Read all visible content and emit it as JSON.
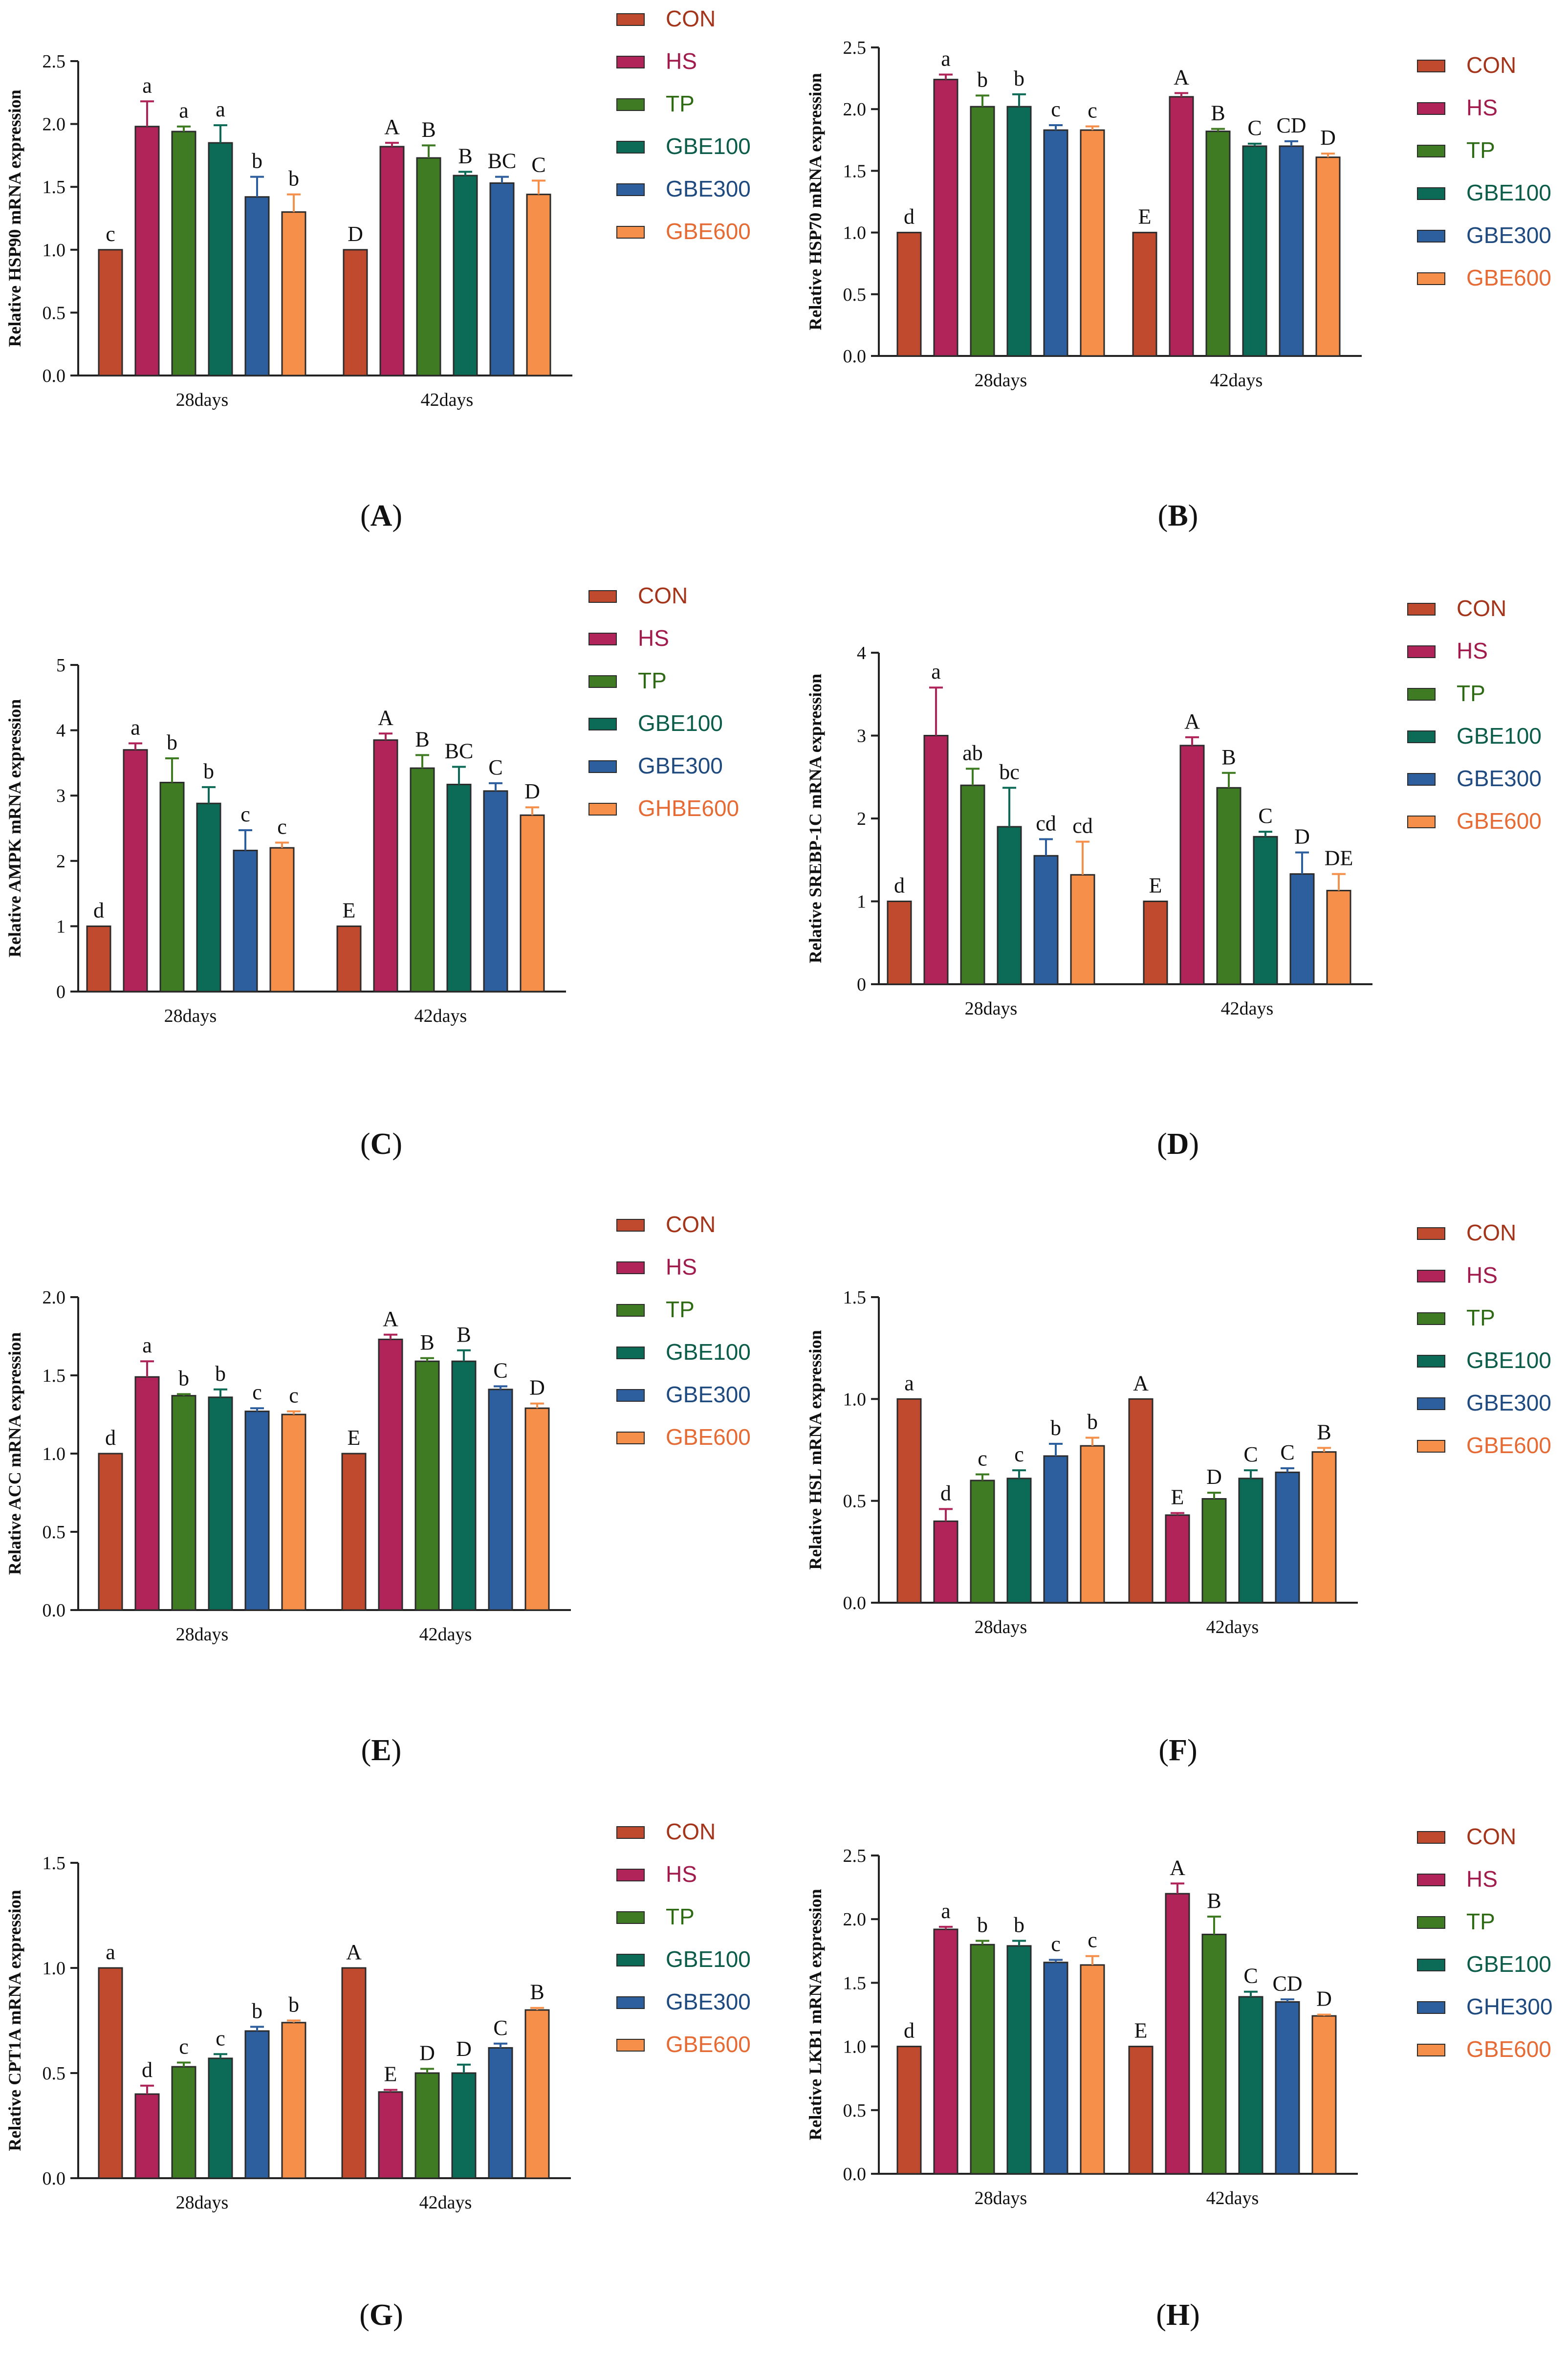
{
  "legend_colors": [
    "#bf4a2e",
    "#b0245a",
    "#3f7b22",
    "#0c6b56",
    "#2d5e9e",
    "#f58f4a"
  ],
  "legend_text_colors": [
    "#a4351a",
    "#a11b4c",
    "#2f6a14",
    "#0b5c49",
    "#1f4a80",
    "#e66a33"
  ],
  "bar_edge_color": "#2b2b2b",
  "chart_data": [
    {
      "panel_label": "A",
      "type": "bar",
      "ylabel": "Relative HSP90 mRNA expression",
      "ylim": [
        0,
        2.5
      ],
      "yticks": [
        0,
        0.5,
        1,
        1.5,
        2,
        2.5
      ],
      "ytick_labels": [
        "0.0",
        "0.5",
        "1.0",
        "1.5",
        "2.0",
        "2.5"
      ],
      "categories": [
        "28days",
        "42days"
      ],
      "legend": [
        "CON",
        "HS",
        "TP",
        "GBE100",
        "GBE300",
        "GBE600"
      ],
      "series": [
        {
          "name": "CON",
          "values": [
            1.0,
            1.0
          ],
          "errors": [
            0.0,
            0.0
          ],
          "labels": [
            "c",
            "D"
          ]
        },
        {
          "name": "HS",
          "values": [
            1.98,
            1.82
          ],
          "errors": [
            0.2,
            0.03
          ],
          "labels": [
            "a",
            "A"
          ]
        },
        {
          "name": "TP",
          "values": [
            1.94,
            1.73
          ],
          "errors": [
            0.04,
            0.1
          ],
          "labels": [
            "a",
            "B"
          ]
        },
        {
          "name": "GBE100",
          "values": [
            1.85,
            1.59
          ],
          "errors": [
            0.14,
            0.03
          ],
          "labels": [
            "a",
            "B"
          ]
        },
        {
          "name": "GBE300",
          "values": [
            1.42,
            1.53
          ],
          "errors": [
            0.16,
            0.05
          ],
          "labels": [
            "b",
            "BC"
          ]
        },
        {
          "name": "GBE600",
          "values": [
            1.3,
            1.44
          ],
          "errors": [
            0.14,
            0.11
          ],
          "labels": [
            "b",
            "C"
          ]
        }
      ]
    },
    {
      "panel_label": "B",
      "type": "bar",
      "ylabel": "Relative HSP70 mRNA expression",
      "ylim": [
        0,
        2.5
      ],
      "yticks": [
        0,
        0.5,
        1,
        1.5,
        2,
        2.5
      ],
      "ytick_labels": [
        "0.0",
        "0.5",
        "1.0",
        "1.5",
        "2.0",
        "2.5"
      ],
      "categories": [
        "28days",
        "42days"
      ],
      "legend": [
        "CON",
        "HS",
        "TP",
        "GBE100",
        "GBE300",
        "GBE600"
      ],
      "series": [
        {
          "name": "CON",
          "values": [
            1.0,
            1.0
          ],
          "errors": [
            0.0,
            0.0
          ],
          "labels": [
            "d",
            "E"
          ]
        },
        {
          "name": "HS",
          "values": [
            2.24,
            2.1
          ],
          "errors": [
            0.04,
            0.03
          ],
          "labels": [
            "a",
            "A"
          ]
        },
        {
          "name": "TP",
          "values": [
            2.02,
            1.82
          ],
          "errors": [
            0.09,
            0.02
          ],
          "labels": [
            "b",
            "B"
          ]
        },
        {
          "name": "GBE100",
          "values": [
            2.02,
            1.7
          ],
          "errors": [
            0.1,
            0.02
          ],
          "labels": [
            "b",
            "C"
          ]
        },
        {
          "name": "GBE300",
          "values": [
            1.83,
            1.7
          ],
          "errors": [
            0.04,
            0.04
          ],
          "labels": [
            "c",
            "CD"
          ]
        },
        {
          "name": "GBE600",
          "values": [
            1.83,
            1.61
          ],
          "errors": [
            0.03,
            0.03
          ],
          "labels": [
            "c",
            "D"
          ]
        }
      ]
    },
    {
      "panel_label": "C",
      "type": "bar",
      "ylabel": "Relative AMPK mRNA expression",
      "ylim": [
        0,
        5
      ],
      "yticks": [
        0,
        1,
        2,
        3,
        4,
        5
      ],
      "ytick_labels": [
        "0",
        "1",
        "2",
        "3",
        "4",
        "5"
      ],
      "categories": [
        "28days",
        "42days"
      ],
      "legend": [
        "CON",
        "HS",
        "TP",
        "GBE100",
        "GBE300",
        "GHBE600"
      ],
      "series": [
        {
          "name": "CON",
          "values": [
            1.0,
            1.0
          ],
          "errors": [
            0.0,
            0.0
          ],
          "labels": [
            "d",
            "E"
          ]
        },
        {
          "name": "HS",
          "values": [
            3.7,
            3.85
          ],
          "errors": [
            0.1,
            0.1
          ],
          "labels": [
            "a",
            "A"
          ]
        },
        {
          "name": "TP",
          "values": [
            3.2,
            3.42
          ],
          "errors": [
            0.37,
            0.2
          ],
          "labels": [
            "b",
            "B"
          ]
        },
        {
          "name": "GBE100",
          "values": [
            2.88,
            3.17
          ],
          "errors": [
            0.25,
            0.27
          ],
          "labels": [
            "b",
            "BC"
          ]
        },
        {
          "name": "GBE300",
          "values": [
            2.16,
            3.07
          ],
          "errors": [
            0.31,
            0.12
          ],
          "labels": [
            "c",
            "C"
          ]
        },
        {
          "name": "GHBE600",
          "values": [
            2.2,
            2.7
          ],
          "errors": [
            0.08,
            0.12
          ],
          "labels": [
            "c",
            "D"
          ]
        }
      ]
    },
    {
      "panel_label": "D",
      "type": "bar",
      "ylabel": "Relative SREBP-1C mRNA expression",
      "ylim": [
        0,
        4
      ],
      "yticks": [
        0,
        1,
        2,
        3,
        4
      ],
      "ytick_labels": [
        "0",
        "1",
        "2",
        "3",
        "4"
      ],
      "categories": [
        "28days",
        "42days"
      ],
      "legend": [
        "CON",
        "HS",
        "TP",
        "GBE100",
        "GBE300",
        "GBE600"
      ],
      "series": [
        {
          "name": "CON",
          "values": [
            1.0,
            1.0
          ],
          "errors": [
            0.0,
            0.0
          ],
          "labels": [
            "d",
            "E"
          ]
        },
        {
          "name": "HS",
          "values": [
            3.0,
            2.88
          ],
          "errors": [
            0.58,
            0.1
          ],
          "labels": [
            "a",
            "A"
          ]
        },
        {
          "name": "TP",
          "values": [
            2.4,
            2.37
          ],
          "errors": [
            0.2,
            0.18
          ],
          "labels": [
            "ab",
            "B"
          ]
        },
        {
          "name": "GBE100",
          "values": [
            1.9,
            1.78
          ],
          "errors": [
            0.47,
            0.06
          ],
          "labels": [
            "bc",
            "C"
          ]
        },
        {
          "name": "GBE300",
          "values": [
            1.55,
            1.33
          ],
          "errors": [
            0.2,
            0.26
          ],
          "labels": [
            "cd",
            "D"
          ]
        },
        {
          "name": "GBE600",
          "values": [
            1.32,
            1.13
          ],
          "errors": [
            0.4,
            0.2
          ],
          "labels": [
            "cd",
            "DE"
          ]
        }
      ]
    },
    {
      "panel_label": "E",
      "type": "bar",
      "ylabel": "Relative ACC mRNA expression",
      "ylim": [
        0,
        2
      ],
      "yticks": [
        0,
        0.5,
        1,
        1.5,
        2
      ],
      "ytick_labels": [
        "0.0",
        "0.5",
        "1.0",
        "1.5",
        "2.0"
      ],
      "categories": [
        "28days",
        "42days"
      ],
      "legend": [
        "CON",
        "HS",
        "TP",
        "GBE100",
        "GBE300",
        "GBE600"
      ],
      "series": [
        {
          "name": "CON",
          "values": [
            1.0,
            1.0
          ],
          "errors": [
            0.0,
            0.0
          ],
          "labels": [
            "d",
            "E"
          ]
        },
        {
          "name": "HS",
          "values": [
            1.49,
            1.73
          ],
          "errors": [
            0.1,
            0.03
          ],
          "labels": [
            "a",
            "A"
          ]
        },
        {
          "name": "TP",
          "values": [
            1.37,
            1.59
          ],
          "errors": [
            0.01,
            0.02
          ],
          "labels": [
            "b",
            "B"
          ]
        },
        {
          "name": "GBE100",
          "values": [
            1.36,
            1.59
          ],
          "errors": [
            0.05,
            0.07
          ],
          "labels": [
            "b",
            "B"
          ]
        },
        {
          "name": "GBE300",
          "values": [
            1.27,
            1.41
          ],
          "errors": [
            0.02,
            0.02
          ],
          "labels": [
            "c",
            "C"
          ]
        },
        {
          "name": "GBE600",
          "values": [
            1.25,
            1.29
          ],
          "errors": [
            0.02,
            0.03
          ],
          "labels": [
            "c",
            "D"
          ]
        }
      ]
    },
    {
      "panel_label": "F",
      "type": "bar",
      "ylabel": "Relative HSL mRNA expression",
      "ylim": [
        0,
        1.5
      ],
      "yticks": [
        0,
        0.5,
        1,
        1.5
      ],
      "ytick_labels": [
        "0.0",
        "0.5",
        "1.0",
        "1.5"
      ],
      "categories": [
        "28days",
        "42days"
      ],
      "legend": [
        "CON",
        "HS",
        "TP",
        "GBE100",
        "GBE300",
        "GBE600"
      ],
      "series": [
        {
          "name": "CON",
          "values": [
            1.0,
            1.0
          ],
          "errors": [
            0.0,
            0.0
          ],
          "labels": [
            "a",
            "A"
          ]
        },
        {
          "name": "HS",
          "values": [
            0.4,
            0.43
          ],
          "errors": [
            0.06,
            0.01
          ],
          "labels": [
            "d",
            "E"
          ]
        },
        {
          "name": "TP",
          "values": [
            0.6,
            0.51
          ],
          "errors": [
            0.03,
            0.03
          ],
          "labels": [
            "c",
            "D"
          ]
        },
        {
          "name": "GBE100",
          "values": [
            0.61,
            0.61
          ],
          "errors": [
            0.04,
            0.04
          ],
          "labels": [
            "c",
            "C"
          ]
        },
        {
          "name": "GBE300",
          "values": [
            0.72,
            0.64
          ],
          "errors": [
            0.06,
            0.02
          ],
          "labels": [
            "b",
            "C"
          ]
        },
        {
          "name": "GBE600",
          "values": [
            0.77,
            0.74
          ],
          "errors": [
            0.04,
            0.02
          ],
          "labels": [
            "b",
            "B"
          ]
        }
      ]
    },
    {
      "panel_label": "G",
      "type": "bar",
      "ylabel": "Relative CPT1A mRNA expression",
      "ylim": [
        0,
        1.5
      ],
      "yticks": [
        0,
        0.5,
        1,
        1.5
      ],
      "ytick_labels": [
        "0.0",
        "0.5",
        "1.0",
        "1.5"
      ],
      "categories": [
        "28days",
        "42days"
      ],
      "legend": [
        "CON",
        "HS",
        "TP",
        "GBE100",
        "GBE300",
        "GBE600"
      ],
      "series": [
        {
          "name": "CON",
          "values": [
            1.0,
            1.0
          ],
          "errors": [
            0.0,
            0.0
          ],
          "labels": [
            "a",
            "A"
          ]
        },
        {
          "name": "HS",
          "values": [
            0.4,
            0.41
          ],
          "errors": [
            0.04,
            0.01
          ],
          "labels": [
            "d",
            "E"
          ]
        },
        {
          "name": "TP",
          "values": [
            0.53,
            0.5
          ],
          "errors": [
            0.02,
            0.02
          ],
          "labels": [
            "c",
            "D"
          ]
        },
        {
          "name": "GBE100",
          "values": [
            0.57,
            0.5
          ],
          "errors": [
            0.02,
            0.04
          ],
          "labels": [
            "c",
            "D"
          ]
        },
        {
          "name": "GBE300",
          "values": [
            0.7,
            0.62
          ],
          "errors": [
            0.02,
            0.02
          ],
          "labels": [
            "b",
            "C"
          ]
        },
        {
          "name": "GBE600",
          "values": [
            0.74,
            0.8
          ],
          "errors": [
            0.01,
            0.01
          ],
          "labels": [
            "b",
            "B"
          ]
        }
      ]
    },
    {
      "panel_label": "H",
      "type": "bar",
      "ylabel": "Relative LKB1 mRNA expression",
      "ylim": [
        0,
        2.5
      ],
      "yticks": [
        0,
        0.5,
        1,
        1.5,
        2,
        2.5
      ],
      "ytick_labels": [
        "0.0",
        "0.5",
        "1.0",
        "1.5",
        "2.0",
        "2.5"
      ],
      "categories": [
        "28days",
        "42days"
      ],
      "legend": [
        "CON",
        "HS",
        "TP",
        "GBE100",
        "GHE300",
        "GBE600"
      ],
      "series": [
        {
          "name": "CON",
          "values": [
            1.0,
            1.0
          ],
          "errors": [
            0.0,
            0.0
          ],
          "labels": [
            "d",
            "E"
          ]
        },
        {
          "name": "HS",
          "values": [
            1.92,
            2.2
          ],
          "errors": [
            0.02,
            0.08
          ],
          "labels": [
            "a",
            "A"
          ]
        },
        {
          "name": "TP",
          "values": [
            1.8,
            1.88
          ],
          "errors": [
            0.03,
            0.14
          ],
          "labels": [
            "b",
            "B"
          ]
        },
        {
          "name": "GBE100",
          "values": [
            1.79,
            1.39
          ],
          "errors": [
            0.04,
            0.04
          ],
          "labels": [
            "b",
            "C"
          ]
        },
        {
          "name": "GHE300",
          "values": [
            1.66,
            1.35
          ],
          "errors": [
            0.02,
            0.02
          ],
          "labels": [
            "c",
            "CD"
          ]
        },
        {
          "name": "GBE600",
          "values": [
            1.64,
            1.24
          ],
          "errors": [
            0.07,
            0.01
          ],
          "labels": [
            "c",
            "D"
          ]
        }
      ]
    }
  ]
}
